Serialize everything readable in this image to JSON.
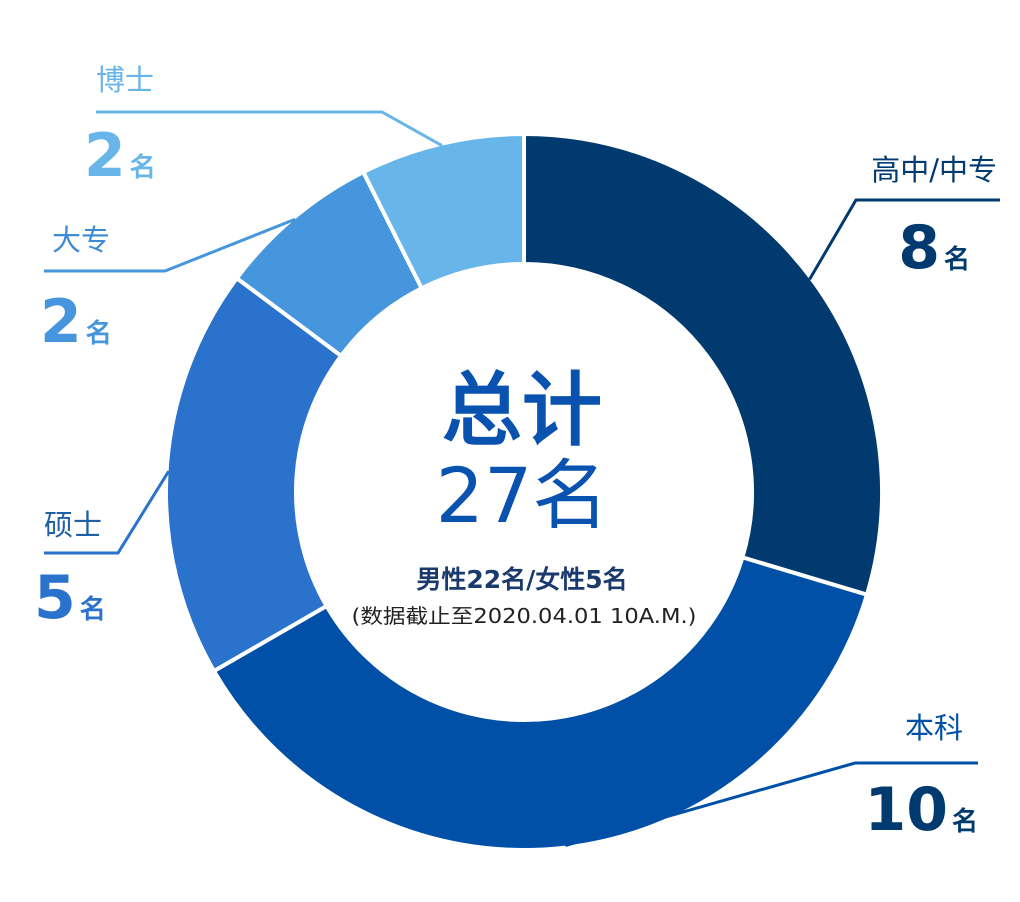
{
  "chart_data": {
    "type": "pie",
    "style": "donut",
    "center": {
      "title": "总计",
      "total": "27名",
      "gender": "男性22名/女性5名",
      "note": "(数据截止至2020.04.01 10A.M.)"
    },
    "unit": "名",
    "slices": [
      {
        "label": "高中/中专",
        "value": 8,
        "color": "#003a6e"
      },
      {
        "label": "本科",
        "value": 10,
        "color": "#0050a8"
      },
      {
        "label": "硕士",
        "value": 5,
        "color": "#2a72cc"
      },
      {
        "label": "大专",
        "value": 2,
        "color": "#4596dd"
      },
      {
        "label": "博士",
        "value": 2,
        "color": "#68b5e9"
      }
    ],
    "colors": {
      "center_text": "#0a52b0",
      "center_small": "#1a3a6e",
      "note": "#222222"
    }
  }
}
